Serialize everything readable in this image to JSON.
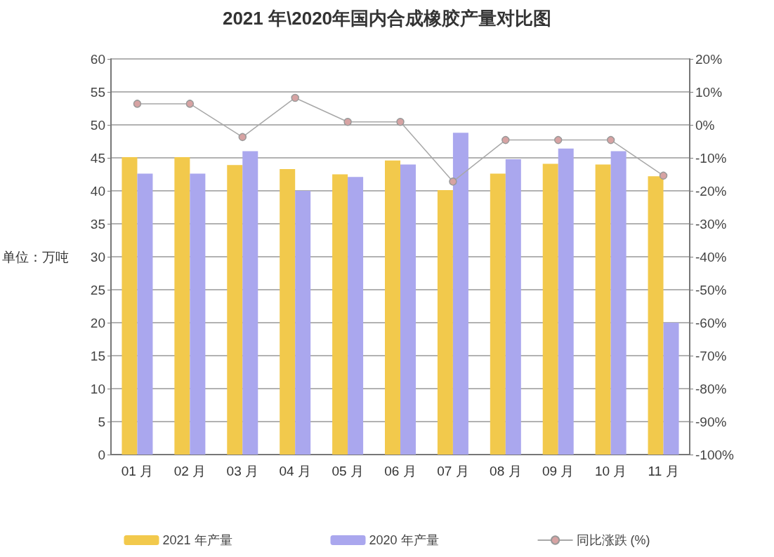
{
  "chart_data": {
    "type": "bar",
    "title": "2021 年\\2020年国内合成橡胶产量对比图",
    "ylabel": "单位：万吨",
    "categories": [
      "01 月",
      "02 月",
      "03 月",
      "04 月",
      "05 月",
      "06 月",
      "07 月",
      "08 月",
      "09 月",
      "10 月",
      "11 月"
    ],
    "series": [
      {
        "name": "2021 年产量",
        "color": "#f2c94c",
        "values": [
          45.1,
          45.1,
          43.9,
          43.3,
          42.5,
          44.6,
          40.1,
          42.6,
          44.1,
          44.0,
          42.2
        ]
      },
      {
        "name": "2020 年产量",
        "color": "#aaa7ee",
        "values": [
          42.6,
          42.6,
          46.0,
          40.0,
          42.1,
          44.0,
          48.8,
          44.8,
          46.4,
          46.0,
          20.0
        ]
      },
      {
        "name": "同比涨跌 (%)",
        "type": "line",
        "axis": "y2",
        "color": "#a8a8a8",
        "values": [
          6.4,
          6.4,
          -3.7,
          8.2,
          0.9,
          0.9,
          -17.2,
          -4.6,
          -4.6,
          -4.6,
          -15.4
        ]
      }
    ],
    "ylim": [
      0,
      60
    ],
    "yticks": [
      0,
      5,
      10,
      15,
      20,
      25,
      30,
      35,
      40,
      45,
      50,
      55,
      60
    ],
    "y2lim": [
      -100,
      20
    ],
    "y2ticks": [
      {
        "value": -100,
        "label": "-100%"
      },
      {
        "value": -90,
        "label": "-90%"
      },
      {
        "value": -80,
        "label": "-80%"
      },
      {
        "value": -70,
        "label": "-70%"
      },
      {
        "value": -60,
        "label": "-60%"
      },
      {
        "value": -50,
        "label": "-50%"
      },
      {
        "value": -40,
        "label": "-40%"
      },
      {
        "value": -30,
        "label": "-30%"
      },
      {
        "value": -20,
        "label": "-20%"
      },
      {
        "value": -10,
        "label": "-10%"
      },
      {
        "value": 0,
        "label": "0%"
      },
      {
        "value": 10,
        "label": "10%"
      },
      {
        "value": 20,
        "label": "20%"
      }
    ],
    "grid": "y",
    "legend": "bottom",
    "marker": "circle"
  }
}
